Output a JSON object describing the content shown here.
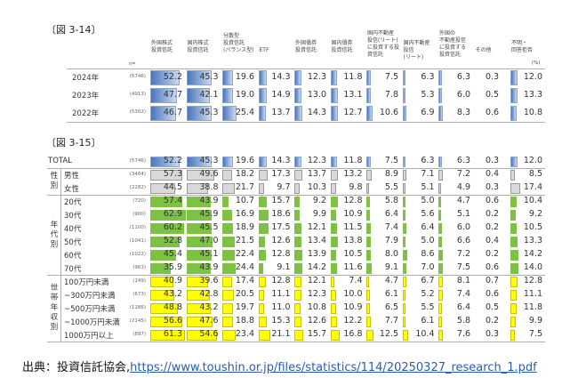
{
  "fig14": {
    "title": "〔図 3-14〕",
    "n_label": "n=",
    "unit": "(%)",
    "columns": [
      "外国株式\n投資信託",
      "国内株式\n投資信託",
      "分散型\n投資信託\n(バランス型)",
      "ETF",
      "外国債券\n投資信託",
      "国内債券\n投資信託",
      "国内不動産\n投信(リート)\nに投資する投\n資信託",
      "国内不動産\n投信\n(リート)",
      "外国の\n不動産投信\nに投資する\n投資信託",
      "その他",
      "不明・\n回答拒否"
    ],
    "rows": [
      {
        "label": "2024年",
        "n": "(5746)",
        "values": [
          "52.2",
          "45.3",
          "19.6",
          "14.3",
          "12.3",
          "11.8",
          "7.5",
          "6.3",
          "6.3",
          "0.3",
          "12.0"
        ]
      },
      {
        "label": "2023年",
        "n": "(4913)",
        "values": [
          "47.7",
          "42.1",
          "19.0",
          "14.9",
          "13.0",
          "13.1",
          "7.8",
          "5.3",
          "6.0",
          "0.5",
          "13.3"
        ]
      },
      {
        "label": "2022年",
        "n": "(5302)",
        "values": [
          "46.7",
          "45.3",
          "25.4",
          "13.7",
          "14.3",
          "12.7",
          "10.6",
          "6.9",
          "8.3",
          "0.6",
          "10.8"
        ]
      }
    ]
  },
  "fig15": {
    "title": "〔図 3-15〕",
    "groups": [
      {
        "label": "性\n別"
      },
      {
        "label": "年\n代\n別"
      },
      {
        "label": "世\n帯\n年\n収\n別"
      }
    ],
    "rows": [
      {
        "label": "TOTAL",
        "n": "(5746)",
        "color": "blue",
        "values": [
          "52.2",
          "45.3",
          "19.6",
          "14.3",
          "12.3",
          "11.8",
          "7.5",
          "6.3",
          "6.3",
          "0.3",
          "12.0"
        ]
      },
      {
        "label": "男性",
        "n": "(3464)",
        "color": "gray",
        "values": [
          "57.3",
          "49.6",
          "18.2",
          "17.3",
          "13.7",
          "13.2",
          "8.9",
          "7.1",
          "7.2",
          "0.4",
          "8.5"
        ]
      },
      {
        "label": "女性",
        "n": "(2282)",
        "color": "gray",
        "values": [
          "44.5",
          "38.8",
          "21.7",
          "9.7",
          "10.3",
          "9.8",
          "5.5",
          "5.1",
          "4.9",
          "0.3",
          "17.4"
        ]
      },
      {
        "label": "20代",
        "n": "(720)",
        "color": "green",
        "values": [
          "57.4",
          "43.9",
          "10.7",
          "15.7",
          "9.2",
          "12.8",
          "5.8",
          "5.0",
          "4.7",
          "0.6",
          "10.4"
        ]
      },
      {
        "label": "30代",
        "n": "(900)",
        "color": "green",
        "values": [
          "62.9",
          "45.9",
          "16.9",
          "18.6",
          "9.9",
          "10.9",
          "6.4",
          "5.6",
          "5.1",
          "0.2",
          "9.2"
        ]
      },
      {
        "label": "40代",
        "n": "(1100)",
        "color": "green",
        "values": [
          "60.2",
          "45.5",
          "18.9",
          "17.5",
          "12.1",
          "11.5",
          "7.4",
          "6.4",
          "6.0",
          "0.2",
          "10.5"
        ]
      },
      {
        "label": "50代",
        "n": "(1041)",
        "color": "green",
        "values": [
          "52.8",
          "47.0",
          "21.5",
          "12.6",
          "13.4",
          "13.8",
          "7.9",
          "5.0",
          "6.6",
          "0.4",
          "13.3"
        ]
      },
      {
        "label": "60代",
        "n": "(1022)",
        "color": "green",
        "values": [
          "45.4",
          "45.1",
          "22.4",
          "12.8",
          "13.9",
          "10.5",
          "8.0",
          "8.6",
          "7.2",
          "0.2",
          "14.2"
        ]
      },
      {
        "label": "70代",
        "n": "(963)",
        "color": "green",
        "values": [
          "35.9",
          "43.9",
          "24.4",
          "9.1",
          "14.2",
          "11.6",
          "9.1",
          "7.0",
          "7.5",
          "0.6",
          "14.0"
        ]
      },
      {
        "label": "100万円未満",
        "n": "(149)",
        "color": "yellow",
        "values": [
          "40.9",
          "39.6",
          "17.4",
          "12.8",
          "12.1",
          "7.4",
          "4.7",
          "6.7",
          "8.1",
          "0.7",
          "12.8"
        ]
      },
      {
        "label": "~300万円未満",
        "n": "(673)",
        "color": "yellow",
        "values": [
          "43.2",
          "42.8",
          "20.5",
          "11.1",
          "12.3",
          "10.0",
          "6.1",
          "5.2",
          "7.4",
          "0.6",
          "11.1"
        ]
      },
      {
        "label": "~500万円未満",
        "n": "(1286)",
        "color": "yellow",
        "values": [
          "48.8",
          "43.2",
          "19.7",
          "11.0",
          "10.8",
          "10.9",
          "6.5",
          "5.5",
          "6.4",
          "0.5",
          "11.8"
        ]
      },
      {
        "label": "~1000万円未満",
        "n": "(2145)",
        "color": "yellow",
        "values": [
          "56.6",
          "47.6",
          "18.8",
          "15.3",
          "12.6",
          "12.2",
          "7.7",
          "6.1",
          "5.8",
          "0.2",
          "9.9"
        ]
      },
      {
        "label": "1000万円以上",
        "n": "(897)",
        "color": "yellow",
        "values": [
          "61.3",
          "54.6",
          "23.4",
          "21.1",
          "15.7",
          "16.8",
          "12.5",
          "10.4",
          "7.6",
          "0.3",
          "7.5"
        ]
      }
    ]
  },
  "footer": {
    "source_label": "出典：投資信託協会,",
    "link": "https://www.toushin.or.jp/files/statistics/114/20250327_research_1.pdf"
  },
  "colors": {
    "blue": "#4a76ba",
    "gray": "#d9d9d9",
    "green": "#7dc243",
    "yellow": "#ffff00"
  }
}
